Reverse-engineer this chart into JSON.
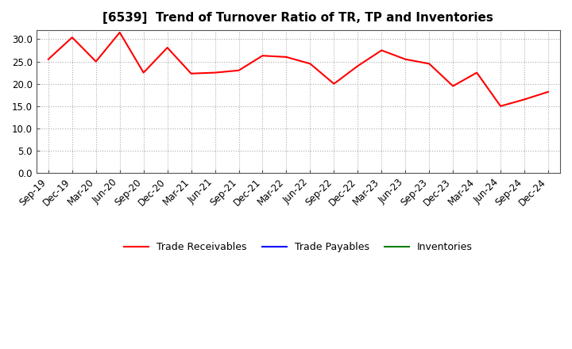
{
  "title": "[6539]  Trend of Turnover Ratio of TR, TP and Inventories",
  "x_labels": [
    "Sep-19",
    "Dec-19",
    "Mar-20",
    "Jun-20",
    "Sep-20",
    "Dec-20",
    "Mar-21",
    "Jun-21",
    "Sep-21",
    "Dec-21",
    "Mar-22",
    "Jun-22",
    "Sep-22",
    "Dec-22",
    "Mar-23",
    "Jun-23",
    "Sep-23",
    "Dec-23",
    "Mar-24",
    "Jun-24",
    "Sep-24",
    "Dec-24"
  ],
  "trade_receivables": [
    25.5,
    30.4,
    25.0,
    31.5,
    22.5,
    28.1,
    22.3,
    22.5,
    23.0,
    26.3,
    26.0,
    24.5,
    20.0,
    24.0,
    27.5,
    25.5,
    24.5,
    19.5,
    22.5,
    15.0,
    16.5,
    18.2
  ],
  "tr_color": "#FF0000",
  "tp_color": "#0000FF",
  "inv_color": "#008000",
  "ylim": [
    0.0,
    32.0
  ],
  "yticks": [
    0.0,
    5.0,
    10.0,
    15.0,
    20.0,
    25.0,
    30.0
  ],
  "background_color": "#FFFFFF",
  "grid_color": "#aaaaaa",
  "legend_labels": [
    "Trade Receivables",
    "Trade Payables",
    "Inventories"
  ],
  "title_fontsize": 11,
  "tick_fontsize": 8.5,
  "legend_fontsize": 9
}
